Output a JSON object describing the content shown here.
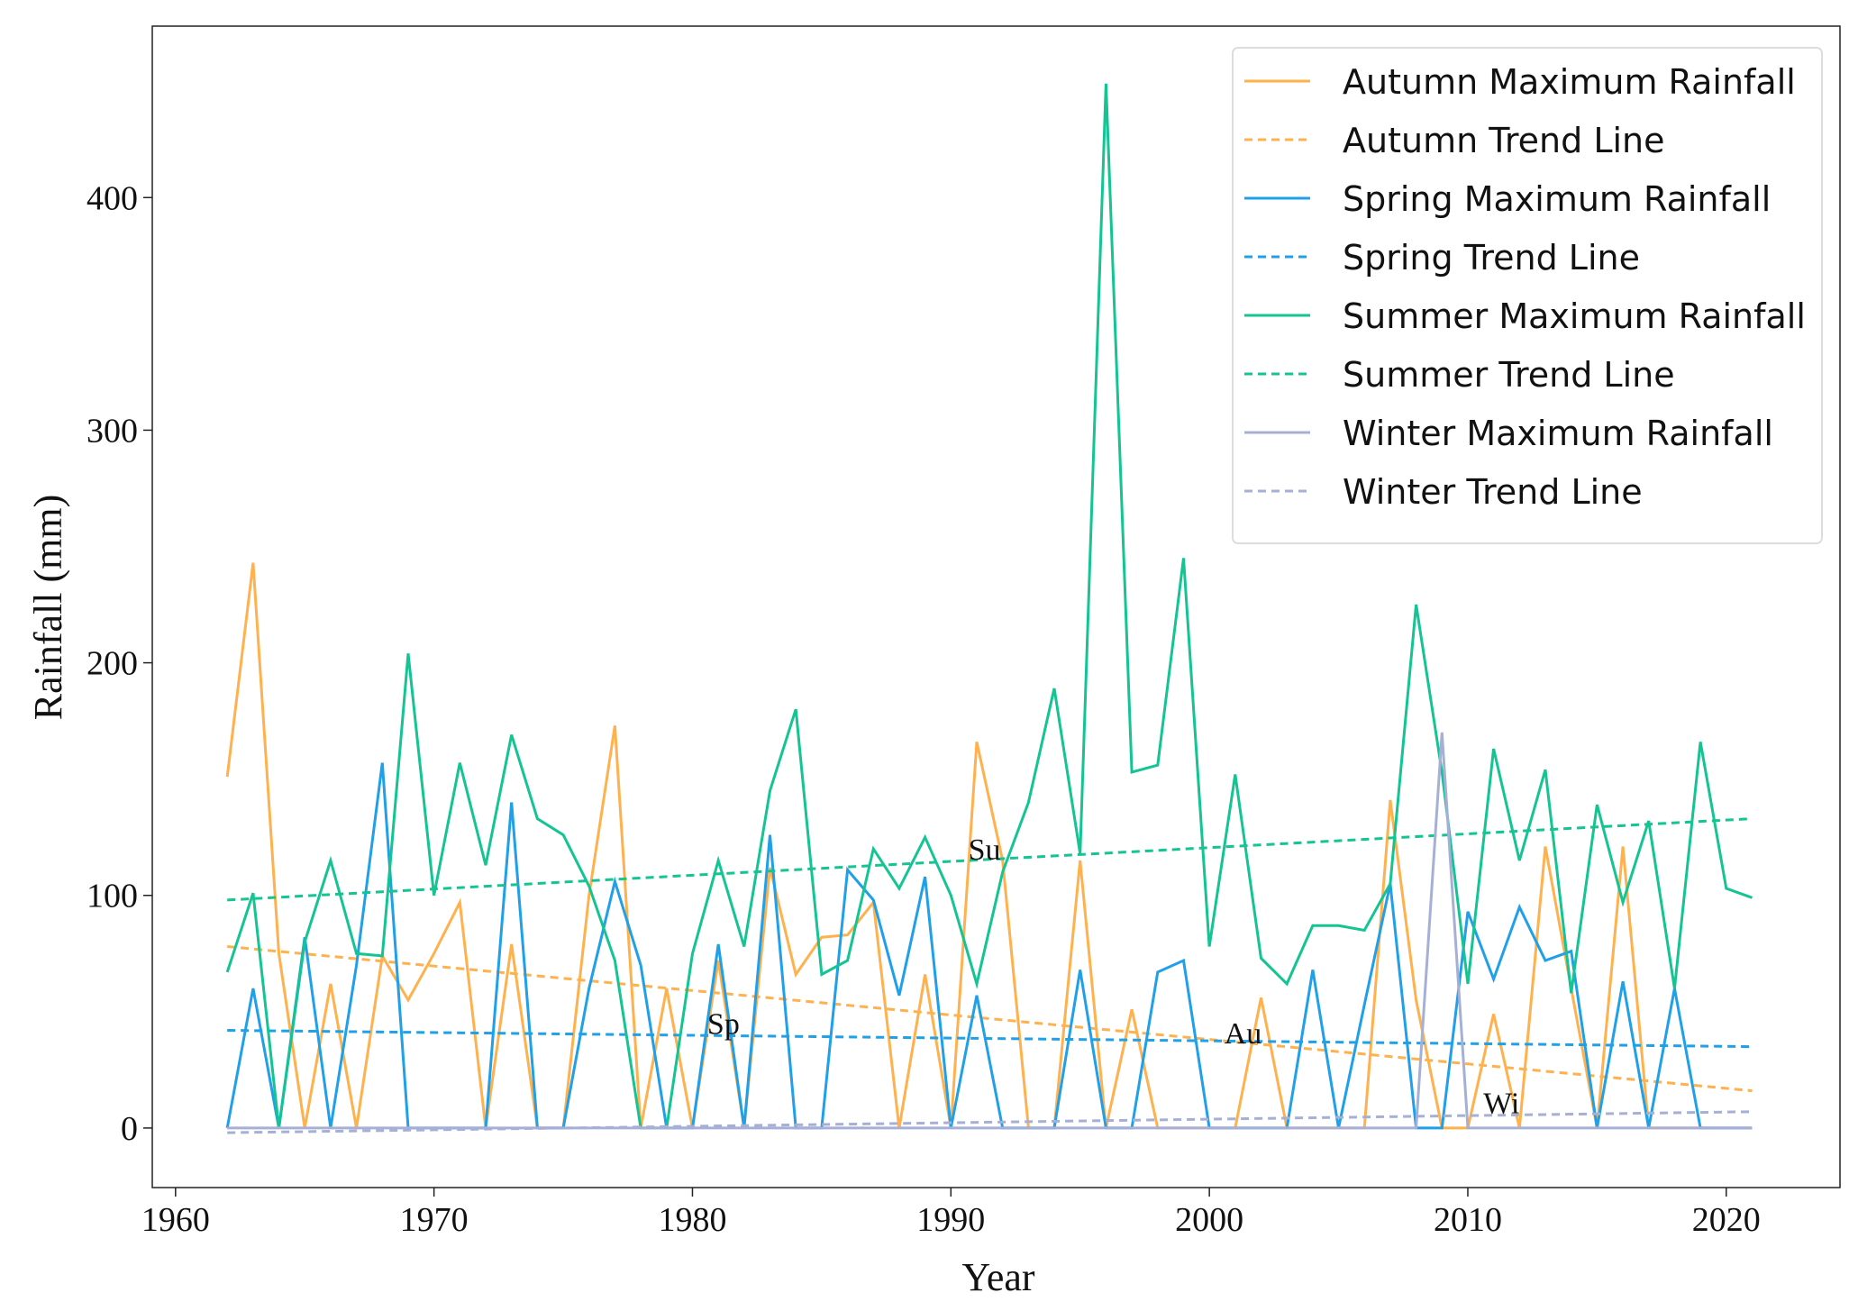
{
  "chart_data": {
    "type": "line",
    "xlabel": "Year",
    "ylabel": "Rainfall (mm)",
    "x": [
      1962,
      1963,
      1964,
      1965,
      1966,
      1967,
      1968,
      1969,
      1970,
      1971,
      1972,
      1973,
      1974,
      1975,
      1976,
      1977,
      1978,
      1979,
      1980,
      1981,
      1982,
      1983,
      1984,
      1985,
      1986,
      1987,
      1988,
      1989,
      1990,
      1991,
      1992,
      1993,
      1994,
      1995,
      1996,
      1997,
      1998,
      1999,
      2000,
      2001,
      2002,
      2003,
      2004,
      2005,
      2006,
      2007,
      2008,
      2009,
      2010,
      2011,
      2012,
      2013,
      2014,
      2015,
      2016,
      2017,
      2018,
      2019,
      2020,
      2021
    ],
    "series": [
      {
        "name": "Autumn Maximum Rainfall",
        "color": "#ffb14e",
        "dashed": false,
        "values": [
          151,
          243,
          75,
          0,
          62,
          0,
          74,
          55,
          75,
          97,
          0,
          79,
          0,
          0,
          100,
          173,
          0,
          60,
          0,
          72,
          0,
          112,
          66,
          82,
          83,
          97,
          0,
          66,
          0,
          166,
          115,
          0,
          0,
          115,
          0,
          51,
          0,
          0,
          0,
          0,
          56,
          0,
          0,
          0,
          0,
          141,
          55,
          0,
          0,
          49,
          0,
          121,
          60,
          0,
          121,
          0,
          0,
          0,
          0,
          0
        ]
      },
      {
        "name": "Autumn Trend Line",
        "color": "#ffb14e",
        "dashed": true,
        "x": [
          1962,
          2021
        ],
        "values": [
          78,
          16
        ]
      },
      {
        "name": "Spring Maximum Rainfall",
        "color": "#1fa0e8",
        "dashed": false,
        "values": [
          0,
          60,
          0,
          82,
          0,
          70,
          157,
          0,
          0,
          0,
          0,
          140,
          0,
          0,
          60,
          106,
          70,
          0,
          0,
          79,
          0,
          126,
          0,
          0,
          111,
          98,
          57,
          108,
          0,
          57,
          0,
          0,
          0,
          68,
          0,
          0,
          67,
          72,
          0,
          0,
          0,
          0,
          68,
          0,
          53,
          105,
          0,
          0,
          93,
          64,
          95,
          72,
          76,
          0,
          63,
          0,
          60,
          0,
          0,
          0
        ]
      },
      {
        "name": "Spring Trend Line",
        "color": "#1fa0e8",
        "dashed": true,
        "x": [
          1962,
          2021
        ],
        "values": [
          42,
          35
        ]
      },
      {
        "name": "Summer Maximum Rainfall",
        "color": "#14c493",
        "dashed": false,
        "values": [
          67,
          101,
          0,
          80,
          115,
          75,
          74,
          204,
          100,
          157,
          113,
          169,
          133,
          126,
          104,
          72,
          0,
          0,
          75,
          115,
          78,
          145,
          180,
          66,
          72,
          120,
          103,
          125,
          100,
          62,
          110,
          140,
          189,
          118,
          449,
          153,
          156,
          245,
          78,
          152,
          73,
          62,
          87,
          87,
          85,
          105,
          225,
          153,
          62,
          163,
          115,
          154,
          58,
          139,
          97,
          132,
          60,
          166,
          103,
          99
        ]
      },
      {
        "name": "Summer Trend Line",
        "color": "#14c493",
        "dashed": true,
        "x": [
          1962,
          2021
        ],
        "values": [
          98,
          133
        ]
      },
      {
        "name": "Winter Maximum Rainfall",
        "color": "#a6b0d6",
        "dashed": false,
        "values": [
          0,
          0,
          0,
          0,
          0,
          0,
          0,
          0,
          0,
          0,
          0,
          0,
          0,
          0,
          0,
          0,
          0,
          0,
          0,
          0,
          0,
          0,
          0,
          0,
          0,
          0,
          0,
          0,
          0,
          0,
          0,
          0,
          0,
          0,
          0,
          0,
          0,
          0,
          0,
          0,
          0,
          0,
          0,
          0,
          0,
          0,
          0,
          170,
          0,
          0,
          0,
          0,
          0,
          0,
          0,
          0,
          0,
          0,
          0,
          0
        ]
      },
      {
        "name": "Winter Trend Line",
        "color": "#a6b0d6",
        "dashed": true,
        "x": [
          1962,
          2021
        ],
        "values": [
          -2,
          7
        ]
      }
    ],
    "annotations": [
      {
        "text": "Su",
        "x": 1991.3,
        "y": 120
      },
      {
        "text": "Sp",
        "x": 1981.2,
        "y": 45
      },
      {
        "text": "Au",
        "x": 2001.3,
        "y": 41
      },
      {
        "text": "Wi",
        "x": 2011.3,
        "y": 11
      }
    ],
    "xlim": [
      1959.1,
      2024.4
    ],
    "ylim": [
      -25.6,
      473.7
    ],
    "xticks": [
      1960,
      1970,
      1980,
      1990,
      2000,
      2010,
      2020
    ],
    "yticks": [
      0,
      100,
      200,
      300,
      400
    ],
    "legend": "upper right"
  }
}
